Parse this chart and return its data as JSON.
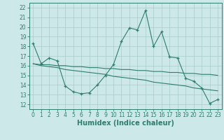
{
  "xlabel": "Humidex (Indice chaleur)",
  "background_color": "#cce8e8",
  "line_color": "#2e7d6e",
  "grid_color": "#aacccc",
  "xlim": [
    -0.5,
    23.5
  ],
  "ylim": [
    11.5,
    22.5
  ],
  "yticks": [
    12,
    13,
    14,
    15,
    16,
    17,
    18,
    19,
    20,
    21,
    22
  ],
  "xticks": [
    0,
    1,
    2,
    3,
    4,
    5,
    6,
    7,
    8,
    9,
    10,
    11,
    12,
    13,
    14,
    15,
    16,
    17,
    18,
    19,
    20,
    21,
    22,
    23
  ],
  "series1_y": [
    18.3,
    16.2,
    16.8,
    16.5,
    13.9,
    13.3,
    13.1,
    13.2,
    14.0,
    15.0,
    16.1,
    18.5,
    19.9,
    19.7,
    21.7,
    18.0,
    19.5,
    16.9,
    16.8,
    14.7,
    14.4,
    13.7,
    12.1,
    12.5
  ],
  "series2_y": [
    16.2,
    16.0,
    15.9,
    15.8,
    15.6,
    15.5,
    15.4,
    15.3,
    15.2,
    15.1,
    14.9,
    14.8,
    14.7,
    14.6,
    14.5,
    14.3,
    14.2,
    14.1,
    14.0,
    13.9,
    13.7,
    13.6,
    13.5,
    13.4
  ],
  "series3_y": [
    16.2,
    16.1,
    16.1,
    16.0,
    16.0,
    15.9,
    15.9,
    15.8,
    15.8,
    15.7,
    15.7,
    15.6,
    15.6,
    15.5,
    15.5,
    15.4,
    15.4,
    15.3,
    15.3,
    15.2,
    15.2,
    15.1,
    15.1,
    15.0
  ],
  "tick_fontsize": 5.5,
  "xlabel_fontsize": 7
}
